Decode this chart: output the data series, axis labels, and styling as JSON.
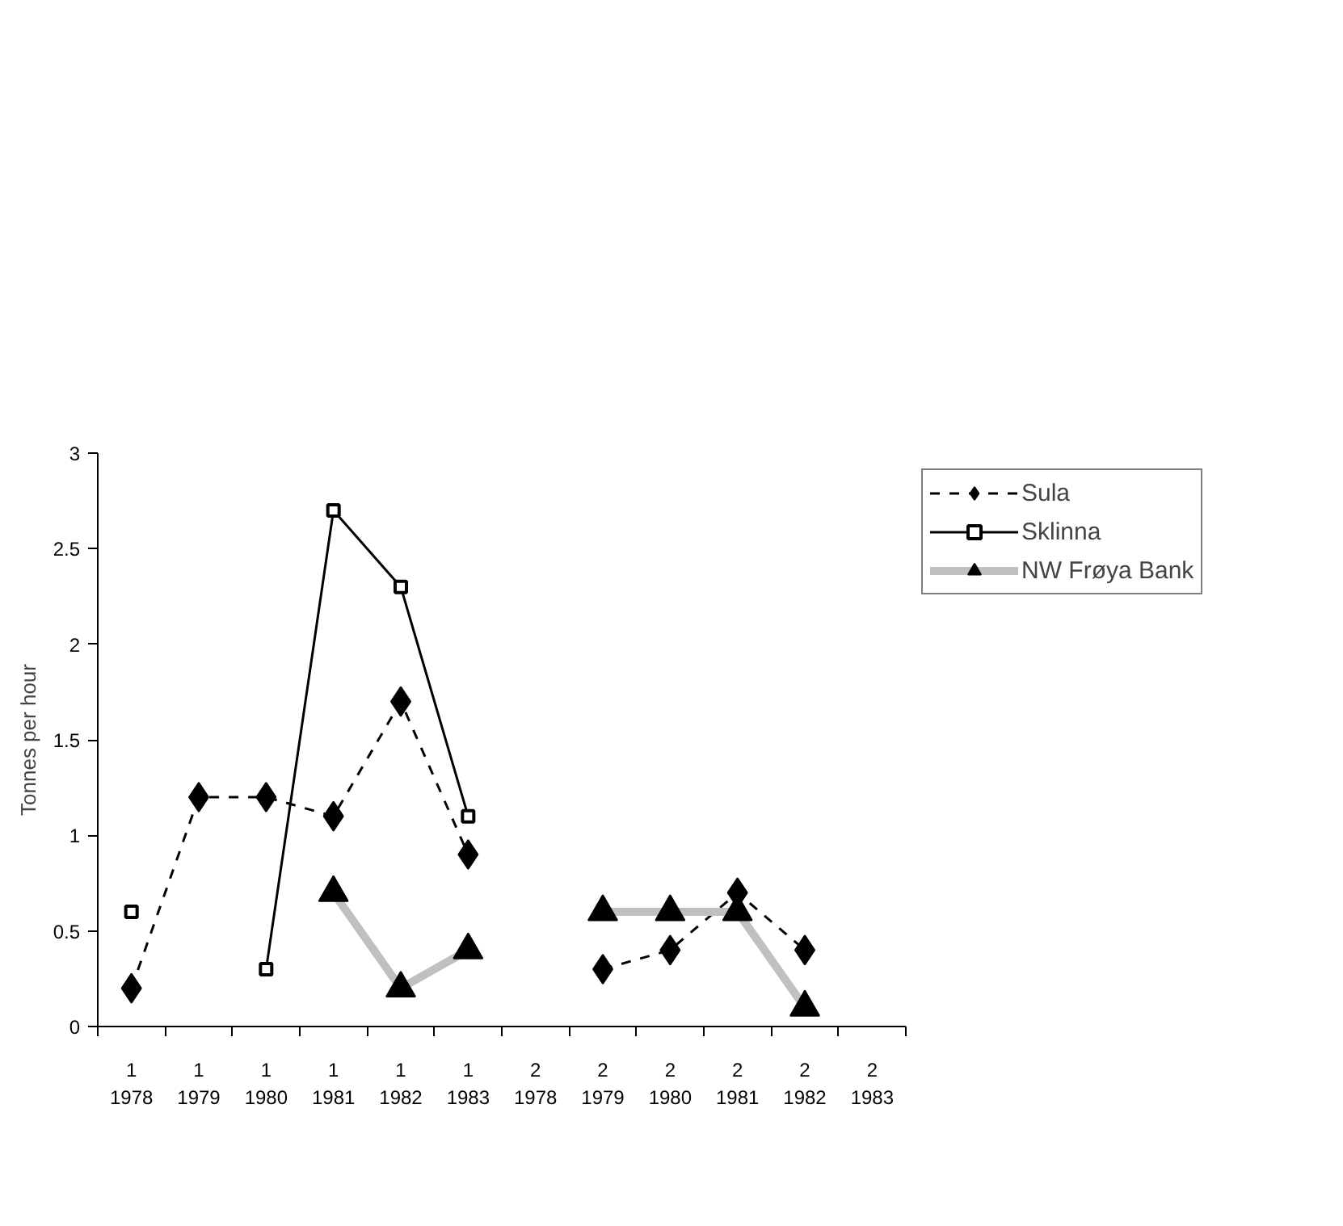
{
  "chart_data": {
    "type": "line",
    "ylabel": "Tonnes per hour",
    "categories": [
      "1\n1978",
      "1\n1979",
      "1\n1980",
      "1\n1981",
      "1\n1982",
      "1\n1983",
      "2\n1978",
      "2\n1979",
      "2\n1980",
      "2\n1981",
      "2\n1982",
      "2\n1983"
    ],
    "ylim": [
      0,
      3
    ],
    "yticks": [
      0,
      0.5,
      1,
      1.5,
      2,
      2.5,
      3
    ],
    "grid": false,
    "legend": "top",
    "series": [
      {
        "name": "Sula",
        "color": "#000000",
        "marker": "diamond",
        "line_style": "dashed",
        "values": [
          0.2,
          1.2,
          1.2,
          1.1,
          1.7,
          0.9,
          null,
          0.3,
          0.4,
          0.7,
          0.4,
          null
        ]
      },
      {
        "name": "Sklinna",
        "color": "#000000",
        "marker": "square",
        "line_style": "solid",
        "values": [
          0.6,
          null,
          0.3,
          2.7,
          2.3,
          1.1,
          null,
          null,
          null,
          null,
          null,
          null
        ]
      },
      {
        "name": "NW Frøya Bank",
        "color": "#c0c0c0",
        "marker": "triangle",
        "line_style": "solid",
        "values": [
          null,
          null,
          null,
          0.7,
          0.2,
          0.4,
          null,
          0.6,
          0.6,
          0.6,
          0.1,
          null
        ]
      }
    ]
  }
}
